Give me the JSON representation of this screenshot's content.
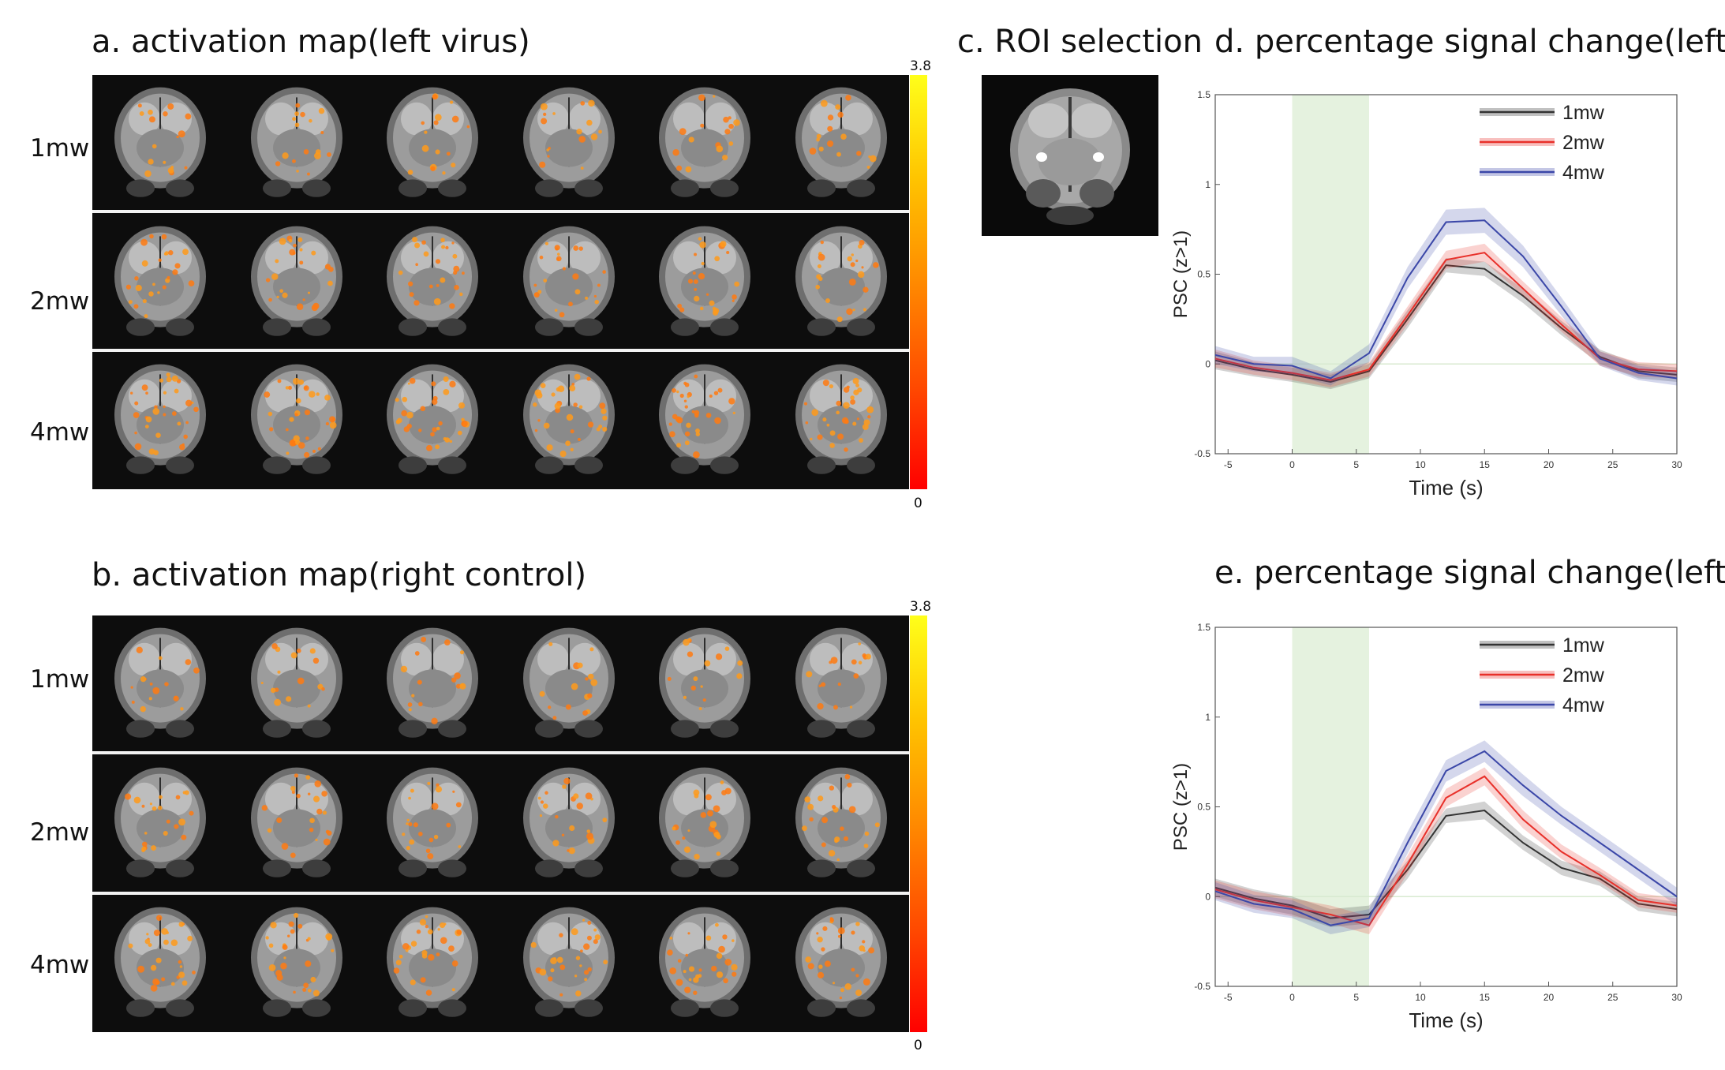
{
  "panels": {
    "a": {
      "title": "a. activation map(left virus)",
      "rows": [
        "1mw",
        "2mw",
        "4mw"
      ],
      "colorbar": {
        "max_label": "3.8",
        "min_label": "0"
      }
    },
    "b": {
      "title": "b. activation map(right control)",
      "rows": [
        "1mw",
        "2mw",
        "4mw"
      ],
      "colorbar": {
        "max_label": "3.8",
        "min_label": "0"
      }
    },
    "c": {
      "title": "c. ROI selection"
    },
    "d": {
      "title": "d. percentage signal change(left)"
    },
    "e": {
      "title": "e. percentage signal change(left)"
    }
  },
  "colors": {
    "1mw": "#333333",
    "2mw": "#e8302a",
    "4mw": "#3b47a8",
    "stimulus_band": "#cfe8c4",
    "heat_low": "#ff0000",
    "heat_high": "#ffff1a"
  },
  "chart_data": [
    {
      "id": "d",
      "type": "line",
      "title": "d. percentage signal change(left)",
      "xlabel": "Time (s)",
      "ylabel": "PSC (z>1)",
      "xlim": [
        -6,
        30
      ],
      "ylim": [
        -0.5,
        1.5
      ],
      "xticks": [
        -5,
        0,
        5,
        10,
        15,
        20,
        25,
        30
      ],
      "yticks": [
        -0.5,
        0,
        0.5,
        1,
        1.5
      ],
      "stimulus_window": [
        0,
        6
      ],
      "legend_position": "top-right",
      "x": [
        -6,
        -3,
        0,
        3,
        6,
        9,
        12,
        15,
        18,
        21,
        24,
        27,
        30
      ],
      "series": [
        {
          "name": "1mw",
          "values": [
            0.02,
            -0.03,
            -0.06,
            -0.1,
            -0.04,
            0.25,
            0.55,
            0.53,
            0.38,
            0.2,
            0.04,
            -0.04,
            -0.06
          ],
          "band": [
            0.05,
            0.04,
            0.04,
            0.04,
            0.04,
            0.05,
            0.04,
            0.04,
            0.04,
            0.04,
            0.04,
            0.04,
            0.04
          ]
        },
        {
          "name": "2mw",
          "values": [
            0.03,
            -0.02,
            -0.05,
            -0.09,
            -0.03,
            0.27,
            0.58,
            0.62,
            0.42,
            0.22,
            0.03,
            -0.03,
            -0.04
          ],
          "band": [
            0.05,
            0.04,
            0.04,
            0.04,
            0.04,
            0.05,
            0.05,
            0.05,
            0.04,
            0.04,
            0.04,
            0.04,
            0.04
          ]
        },
        {
          "name": "4mw",
          "values": [
            0.05,
            0.0,
            -0.01,
            -0.08,
            0.06,
            0.48,
            0.79,
            0.8,
            0.6,
            0.32,
            0.03,
            -0.05,
            -0.08
          ],
          "band": [
            0.05,
            0.04,
            0.05,
            0.04,
            0.05,
            0.06,
            0.07,
            0.07,
            0.06,
            0.05,
            0.04,
            0.04,
            0.04
          ]
        }
      ]
    },
    {
      "id": "e",
      "type": "line",
      "title": "e. percentage signal change(left)",
      "xlabel": "Time (s)",
      "ylabel": "PSC (z>1)",
      "xlim": [
        -6,
        30
      ],
      "ylim": [
        -0.5,
        1.5
      ],
      "xticks": [
        -5,
        0,
        5,
        10,
        15,
        20,
        25,
        30
      ],
      "yticks": [
        -0.5,
        0,
        0.5,
        1,
        1.5
      ],
      "stimulus_window": [
        0,
        6
      ],
      "legend_position": "top-right",
      "x": [
        -6,
        -3,
        0,
        3,
        6,
        9,
        12,
        15,
        18,
        21,
        24,
        27,
        30
      ],
      "series": [
        {
          "name": "1mw",
          "values": [
            0.05,
            -0.01,
            -0.05,
            -0.12,
            -0.1,
            0.15,
            0.45,
            0.48,
            0.3,
            0.16,
            0.1,
            -0.04,
            -0.07
          ],
          "band": [
            0.05,
            0.05,
            0.05,
            0.05,
            0.05,
            0.05,
            0.04,
            0.05,
            0.04,
            0.04,
            0.04,
            0.04,
            0.04
          ]
        },
        {
          "name": "2mw",
          "values": [
            0.04,
            -0.02,
            -0.06,
            -0.1,
            -0.16,
            0.18,
            0.55,
            0.67,
            0.43,
            0.25,
            0.12,
            -0.02,
            -0.05
          ],
          "band": [
            0.05,
            0.05,
            0.05,
            0.05,
            0.05,
            0.05,
            0.05,
            0.05,
            0.05,
            0.04,
            0.04,
            0.04,
            0.04
          ]
        },
        {
          "name": "4mw",
          "values": [
            0.03,
            -0.04,
            -0.07,
            -0.16,
            -0.12,
            0.3,
            0.7,
            0.81,
            0.62,
            0.45,
            0.3,
            0.15,
            0.0
          ],
          "band": [
            0.05,
            0.05,
            0.05,
            0.05,
            0.05,
            0.06,
            0.06,
            0.06,
            0.06,
            0.05,
            0.05,
            0.05,
            0.05
          ]
        }
      ]
    }
  ]
}
